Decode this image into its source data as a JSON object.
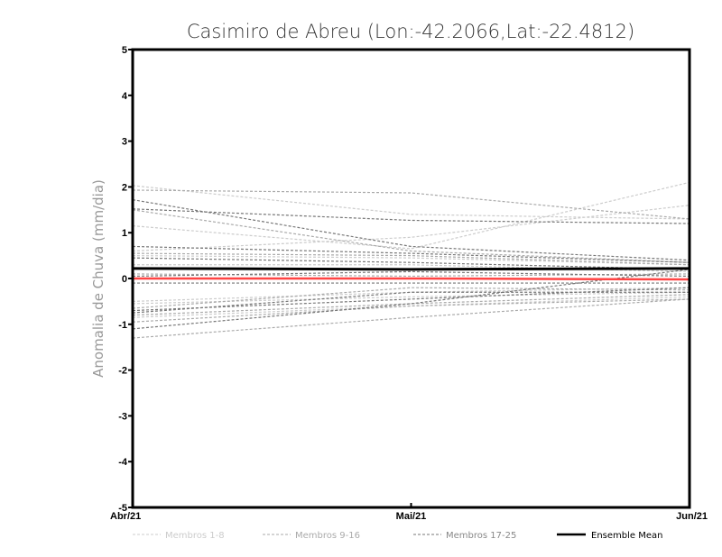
{
  "chart_data": {
    "type": "line",
    "title": "Casimiro de Abreu (Lon:-42.2066,Lat:-22.4812)",
    "xlabel": "",
    "ylabel": "Anomalia de Chuva (mm/dia)",
    "x": [
      "Abr/21",
      "Mai/21",
      "Jun/21"
    ],
    "ylim": [
      -5,
      5
    ],
    "yticks": [
      "5",
      "4",
      "3",
      "2",
      "1",
      "0",
      "-1",
      "-2",
      "-3",
      "-4",
      "-5"
    ],
    "grid": false,
    "legend_placement": "bottom",
    "legend": [
      "Membros 1-8",
      "Membros 9-16",
      "Membros 17-25",
      "Ensemble Mean"
    ],
    "colors": {
      "g1": "#cccccc",
      "g2": "#aaaaaa",
      "g3": "#777777",
      "mean": "#000000",
      "zero": "#ff4444"
    },
    "series": [
      {
        "name": "m1",
        "group": "g1",
        "values": [
          2.03,
          1.4,
          1.3
        ]
      },
      {
        "name": "m2",
        "group": "g1",
        "values": [
          1.15,
          0.65,
          2.1
        ]
      },
      {
        "name": "m3",
        "group": "g1",
        "values": [
          0.6,
          0.9,
          1.6
        ]
      },
      {
        "name": "m4",
        "group": "g1",
        "values": [
          0.5,
          0.45,
          0.3
        ]
      },
      {
        "name": "m5",
        "group": "g1",
        "values": [
          0.3,
          0.3,
          0.15
        ]
      },
      {
        "name": "m6",
        "group": "g1",
        "values": [
          -0.5,
          -0.3,
          -0.2
        ]
      },
      {
        "name": "m7",
        "group": "g1",
        "values": [
          -0.55,
          -0.4,
          -0.3
        ]
      },
      {
        "name": "m8",
        "group": "g1",
        "values": [
          -0.85,
          -0.6,
          -0.4
        ]
      },
      {
        "name": "m9",
        "group": "g2",
        "values": [
          1.93,
          1.87,
          1.3
        ]
      },
      {
        "name": "m10",
        "group": "g2",
        "values": [
          1.5,
          0.6,
          0.35
        ]
      },
      {
        "name": "m11",
        "group": "g2",
        "values": [
          0.55,
          0.5,
          0.3
        ]
      },
      {
        "name": "m12",
        "group": "g2",
        "values": [
          0.1,
          0.05,
          0.1
        ]
      },
      {
        "name": "m13",
        "group": "g2",
        "values": [
          -0.65,
          -0.2,
          -0.25
        ]
      },
      {
        "name": "m14",
        "group": "g2",
        "values": [
          -0.8,
          -0.55,
          -0.35
        ]
      },
      {
        "name": "m15",
        "group": "g2",
        "values": [
          -0.95,
          -0.6,
          -0.45
        ]
      },
      {
        "name": "m16",
        "group": "g2",
        "values": [
          -1.3,
          -0.85,
          -0.45
        ]
      },
      {
        "name": "m17",
        "group": "g3",
        "values": [
          1.72,
          0.7,
          0.4
        ]
      },
      {
        "name": "m18",
        "group": "g3",
        "values": [
          1.52,
          1.27,
          1.2
        ]
      },
      {
        "name": "m19",
        "group": "g3",
        "values": [
          0.7,
          0.55,
          0.35
        ]
      },
      {
        "name": "m20",
        "group": "g3",
        "values": [
          0.45,
          0.35,
          0.2
        ]
      },
      {
        "name": "m21",
        "group": "g3",
        "values": [
          0.05,
          0.15,
          0.05
        ]
      },
      {
        "name": "m22",
        "group": "g3",
        "values": [
          -0.1,
          -0.1,
          -0.1
        ]
      },
      {
        "name": "m23",
        "group": "g3",
        "values": [
          -0.7,
          -0.45,
          -0.2
        ]
      },
      {
        "name": "m24",
        "group": "g3",
        "values": [
          -0.75,
          -0.3,
          -0.3
        ]
      },
      {
        "name": "m25",
        "group": "g3",
        "values": [
          -1.1,
          -0.55,
          0.2
        ]
      },
      {
        "name": "Ensemble Mean",
        "group": "mean",
        "values": [
          0.22,
          0.2,
          0.22
        ]
      },
      {
        "name": "zero",
        "group": "zero",
        "values": [
          0,
          0,
          -0.02
        ]
      }
    ]
  }
}
